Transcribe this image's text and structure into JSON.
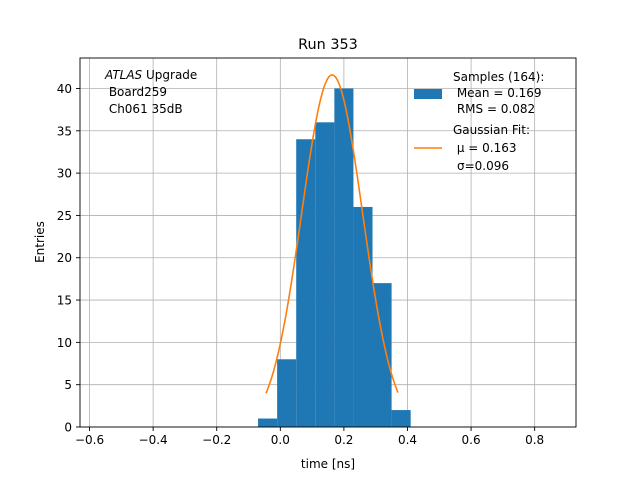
{
  "chart_data": {
    "type": "bar",
    "title": "Run 353",
    "xlabel": "time [ns]",
    "ylabel": "Entries",
    "xlim": [
      -0.63,
      0.93
    ],
    "ylim": [
      0,
      43.6
    ],
    "grid": true,
    "xticks": [
      -0.6,
      -0.4,
      -0.2,
      0.0,
      0.2,
      0.4,
      0.6,
      0.8
    ],
    "xtick_labels": [
      "−0.6",
      "−0.4",
      "−0.2",
      "0.0",
      "0.2",
      "0.4",
      "0.6",
      "0.8"
    ],
    "yticks": [
      0,
      5,
      10,
      15,
      20,
      25,
      30,
      35,
      40
    ],
    "yticks_labels": [
      "0",
      "5",
      "10",
      "15",
      "20",
      "25",
      "30",
      "35",
      "40"
    ],
    "histogram": {
      "name": "Samples (164):",
      "color": "#1f77b4",
      "bin_edges": [
        -0.07,
        -0.01,
        0.05,
        0.11,
        0.17,
        0.23,
        0.29,
        0.35,
        0.41
      ],
      "counts": [
        1,
        8,
        34,
        36,
        40,
        26,
        17,
        2
      ]
    },
    "fit": {
      "name": "Gaussian Fit:",
      "color": "#ff7f0e",
      "mu": 0.163,
      "sigma": 0.096,
      "amplitude": 41.6,
      "x_range": [
        -0.045,
        0.37
      ]
    },
    "annotation": {
      "italic": "ATLAS",
      "line1_rest": " Upgrade",
      "line2": " Board259",
      "line3": " Ch061 35dB"
    },
    "legend": {
      "placement": "top-right",
      "hist_lines": [
        "Samples (164):",
        " Mean = 0.169",
        " RMS = 0.082"
      ],
      "fit_lines": [
        "Gaussian Fit:",
        " μ = 0.163",
        "σ=0.096"
      ]
    }
  }
}
